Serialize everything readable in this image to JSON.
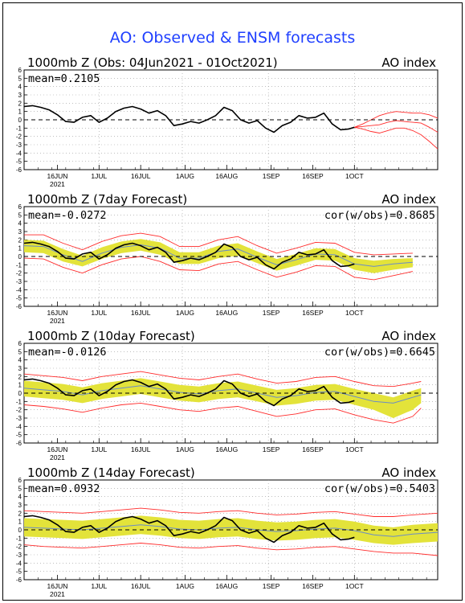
{
  "title": "AO: Observed & ENSM forecasts",
  "year_label": "2021",
  "x_tick_labels": [
    "16JUN",
    "1JUL",
    "16JUL",
    "1AUG",
    "16AUG",
    "1SEP",
    "16SEP",
    "1OCT"
  ],
  "y_tick_labels": [
    "6",
    "5",
    "4",
    "3",
    "2",
    "1",
    "0",
    "-1",
    "-2",
    "-3",
    "-4",
    "-5",
    "-6"
  ],
  "panels": [
    {
      "title_left": "1000mb Z (Obs: 04Jun2021 - 01Oct2021)",
      "title_right": "AO index",
      "mean_text": "mean=0.2105",
      "cor_text": ""
    },
    {
      "title_left": "1000mb Z (7day Forecast)",
      "title_right": "AO index",
      "mean_text": "mean=-0.0272",
      "cor_text": "cor(w/obs)=0.8685"
    },
    {
      "title_left": "1000mb Z (10day Forecast)",
      "title_right": "AO index",
      "mean_text": "mean=-0.0126",
      "cor_text": "cor(w/obs)=0.6645"
    },
    {
      "title_left": "1000mb Z (14day Forecast)",
      "title_right": "AO index",
      "mean_text": "mean=0.0932",
      "cor_text": "cor(w/obs)=0.5403"
    }
  ],
  "colors": {
    "title": "#1f3fff",
    "observed": "#000000",
    "spread_band": "#e3e33a",
    "envelope": "#ff2a2a",
    "ensemble_mean": "#6b8cc6",
    "grid": "#999999",
    "zero_line": "#000000"
  },
  "chart_data": {
    "type": "line",
    "x_unit": "day",
    "x_start": "2021-06-04",
    "xlim": [
      "2021-06-04",
      "2021-10-31"
    ],
    "ylim": [
      -6,
      6
    ],
    "grid": true,
    "observed_ao": {
      "dates": [
        "2021-06-04",
        "2021-06-07",
        "2021-06-10",
        "2021-06-13",
        "2021-06-16",
        "2021-06-19",
        "2021-06-22",
        "2021-06-25",
        "2021-06-28",
        "2021-07-01",
        "2021-07-04",
        "2021-07-07",
        "2021-07-10",
        "2021-07-13",
        "2021-07-16",
        "2021-07-19",
        "2021-07-22",
        "2021-07-25",
        "2021-07-28",
        "2021-07-31",
        "2021-08-03",
        "2021-08-06",
        "2021-08-09",
        "2021-08-12",
        "2021-08-15",
        "2021-08-18",
        "2021-08-21",
        "2021-08-24",
        "2021-08-27",
        "2021-08-30",
        "2021-09-02",
        "2021-09-05",
        "2021-09-08",
        "2021-09-11",
        "2021-09-14",
        "2021-09-17",
        "2021-09-20",
        "2021-09-23",
        "2021-09-26",
        "2021-09-29",
        "2021-10-01"
      ],
      "values": [
        1.6,
        1.7,
        1.5,
        1.2,
        0.6,
        -0.2,
        -0.3,
        0.3,
        0.5,
        -0.3,
        0.2,
        1.0,
        1.4,
        1.6,
        1.3,
        0.8,
        1.1,
        0.5,
        -0.7,
        -0.5,
        -0.2,
        -0.4,
        0.0,
        0.5,
        1.5,
        1.1,
        0.0,
        -0.4,
        -0.1,
        -1.0,
        -1.5,
        -0.7,
        -0.3,
        0.5,
        0.2,
        0.3,
        0.8,
        -0.5,
        -1.2,
        -1.1,
        -0.9
      ]
    },
    "panels": [
      {
        "name": "Obs",
        "forecast_members": {
          "dates": [
            "2021-10-01",
            "2021-10-04",
            "2021-10-07",
            "2021-10-10",
            "2021-10-13",
            "2021-10-16",
            "2021-10-19",
            "2021-10-22",
            "2021-10-25",
            "2021-10-28",
            "2021-10-31"
          ],
          "low": [
            -0.9,
            -1.1,
            -1.4,
            -1.6,
            -1.3,
            -1.0,
            -1.0,
            -1.3,
            -1.8,
            -2.6,
            -3.5
          ],
          "high": [
            -0.9,
            -0.5,
            0.0,
            0.5,
            0.8,
            1.0,
            0.9,
            0.8,
            0.8,
            0.6,
            0.2
          ],
          "mid": [
            -0.9,
            -0.8,
            -0.7,
            -0.6,
            -0.3,
            -0.1,
            -0.2,
            -0.3,
            -0.4,
            -0.9,
            -1.5
          ]
        }
      },
      {
        "name": "7day",
        "dates": [
          "2021-06-04",
          "2021-06-11",
          "2021-06-18",
          "2021-06-25",
          "2021-07-02",
          "2021-07-09",
          "2021-07-16",
          "2021-07-23",
          "2021-07-30",
          "2021-08-06",
          "2021-08-13",
          "2021-08-20",
          "2021-08-27",
          "2021-09-03",
          "2021-09-10",
          "2021-09-17",
          "2021-09-24",
          "2021-10-01",
          "2021-10-08",
          "2021-10-15",
          "2021-10-22"
        ],
        "mean": [
          1.3,
          1.2,
          0.2,
          -0.6,
          0.4,
          1.1,
          1.4,
          1.0,
          -0.2,
          -0.2,
          0.6,
          0.9,
          -0.1,
          -1.0,
          -0.4,
          0.3,
          0.2,
          -0.9,
          -1.2,
          -0.9,
          -0.7
        ],
        "band_low": [
          0.5,
          0.4,
          -0.6,
          -1.2,
          -0.3,
          0.4,
          0.7,
          0.2,
          -0.9,
          -0.9,
          -0.2,
          0.1,
          -0.8,
          -1.7,
          -1.1,
          -0.4,
          -0.5,
          -1.6,
          -2.0,
          -1.6,
          -1.3
        ],
        "band_high": [
          2.0,
          1.9,
          0.9,
          0.1,
          1.1,
          1.8,
          2.1,
          1.7,
          0.5,
          0.5,
          1.3,
          1.6,
          0.6,
          -0.3,
          0.3,
          1.0,
          0.9,
          -0.2,
          -0.5,
          -0.3,
          -0.2
        ],
        "env_low": [
          -0.2,
          -0.3,
          -1.3,
          -2.0,
          -1.0,
          -0.3,
          0.0,
          -0.6,
          -1.6,
          -1.7,
          -0.9,
          -0.6,
          -1.6,
          -2.5,
          -1.9,
          -1.1,
          -1.2,
          -2.5,
          -2.8,
          -2.3,
          -1.8
        ],
        "env_high": [
          2.6,
          2.6,
          1.6,
          0.8,
          1.8,
          2.5,
          2.8,
          2.4,
          1.2,
          1.2,
          2.0,
          2.4,
          1.3,
          0.4,
          1.0,
          1.7,
          1.6,
          0.5,
          0.2,
          0.3,
          0.4
        ]
      },
      {
        "name": "10day",
        "dates": [
          "2021-06-04",
          "2021-06-11",
          "2021-06-18",
          "2021-06-25",
          "2021-07-02",
          "2021-07-09",
          "2021-07-16",
          "2021-07-23",
          "2021-07-30",
          "2021-08-06",
          "2021-08-13",
          "2021-08-20",
          "2021-08-27",
          "2021-09-03",
          "2021-09-10",
          "2021-09-17",
          "2021-09-24",
          "2021-10-01",
          "2021-10-08",
          "2021-10-15",
          "2021-10-22",
          "2021-10-25"
        ],
        "mean": [
          0.6,
          0.4,
          0.2,
          -0.2,
          0.3,
          0.6,
          0.9,
          0.5,
          0.1,
          -0.1,
          0.3,
          0.5,
          0.0,
          -0.5,
          -0.3,
          0.1,
          0.2,
          -0.4,
          -1.0,
          -1.2,
          -0.5,
          -0.2
        ],
        "band_low": [
          -0.4,
          -0.6,
          -0.8,
          -1.2,
          -0.7,
          -0.4,
          -0.1,
          -0.5,
          -0.9,
          -1.1,
          -0.7,
          -0.5,
          -1.0,
          -1.5,
          -1.3,
          -0.9,
          -0.8,
          -1.4,
          -2.0,
          -3.0,
          -2.0,
          -1.2
        ],
        "band_high": [
          1.5,
          1.3,
          1.1,
          0.7,
          1.2,
          1.5,
          1.8,
          1.4,
          1.0,
          0.8,
          1.2,
          1.4,
          0.9,
          0.4,
          0.6,
          1.0,
          1.1,
          0.5,
          0.0,
          -0.5,
          0.3,
          0.6
        ],
        "env_low": [
          -1.4,
          -1.6,
          -1.9,
          -2.3,
          -1.8,
          -1.4,
          -1.2,
          -1.6,
          -2.0,
          -2.2,
          -1.8,
          -1.6,
          -2.2,
          -2.8,
          -2.5,
          -2.0,
          -1.9,
          -2.6,
          -3.2,
          -3.6,
          -2.8,
          -1.8
        ],
        "env_high": [
          2.3,
          2.1,
          1.9,
          1.5,
          2.0,
          2.3,
          2.6,
          2.2,
          1.8,
          1.6,
          2.0,
          2.3,
          1.7,
          1.2,
          1.4,
          1.9,
          2.0,
          1.4,
          0.9,
          0.8,
          1.2,
          1.4
        ]
      },
      {
        "name": "14day",
        "dates": [
          "2021-06-04",
          "2021-06-11",
          "2021-06-18",
          "2021-06-25",
          "2021-07-02",
          "2021-07-09",
          "2021-07-16",
          "2021-07-23",
          "2021-07-30",
          "2021-08-06",
          "2021-08-13",
          "2021-08-20",
          "2021-08-27",
          "2021-09-03",
          "2021-09-10",
          "2021-09-17",
          "2021-09-24",
          "2021-10-01",
          "2021-10-08",
          "2021-10-15",
          "2021-10-22",
          "2021-10-31"
        ],
        "mean": [
          0.3,
          0.2,
          0.1,
          0.0,
          0.2,
          0.4,
          0.6,
          0.4,
          0.1,
          0.0,
          0.2,
          0.3,
          0.0,
          -0.2,
          -0.1,
          0.1,
          0.2,
          -0.1,
          -0.6,
          -0.8,
          -0.5,
          -0.3
        ],
        "band_low": [
          -0.8,
          -0.9,
          -1.0,
          -1.1,
          -0.9,
          -0.7,
          -0.5,
          -0.7,
          -1.0,
          -1.1,
          -0.9,
          -0.8,
          -1.1,
          -1.3,
          -1.2,
          -1.0,
          -0.9,
          -1.2,
          -1.6,
          -1.8,
          -1.6,
          -1.4
        ],
        "band_high": [
          1.4,
          1.3,
          1.2,
          1.1,
          1.3,
          1.5,
          1.7,
          1.5,
          1.2,
          1.1,
          1.3,
          1.4,
          1.1,
          0.9,
          1.0,
          1.2,
          1.3,
          1.0,
          0.5,
          0.3,
          0.6,
          0.8
        ],
        "env_low": [
          -1.8,
          -2.0,
          -2.1,
          -2.2,
          -2.0,
          -1.8,
          -1.6,
          -1.8,
          -2.1,
          -2.2,
          -2.0,
          -1.9,
          -2.2,
          -2.4,
          -2.3,
          -2.1,
          -2.0,
          -2.3,
          -2.6,
          -2.8,
          -2.8,
          -3.1
        ],
        "env_high": [
          2.3,
          2.2,
          2.1,
          2.0,
          2.2,
          2.4,
          2.6,
          2.4,
          2.1,
          2.0,
          2.2,
          2.3,
          2.0,
          1.8,
          1.9,
          2.1,
          2.2,
          1.9,
          1.6,
          1.6,
          1.8,
          2.0
        ]
      }
    ]
  }
}
